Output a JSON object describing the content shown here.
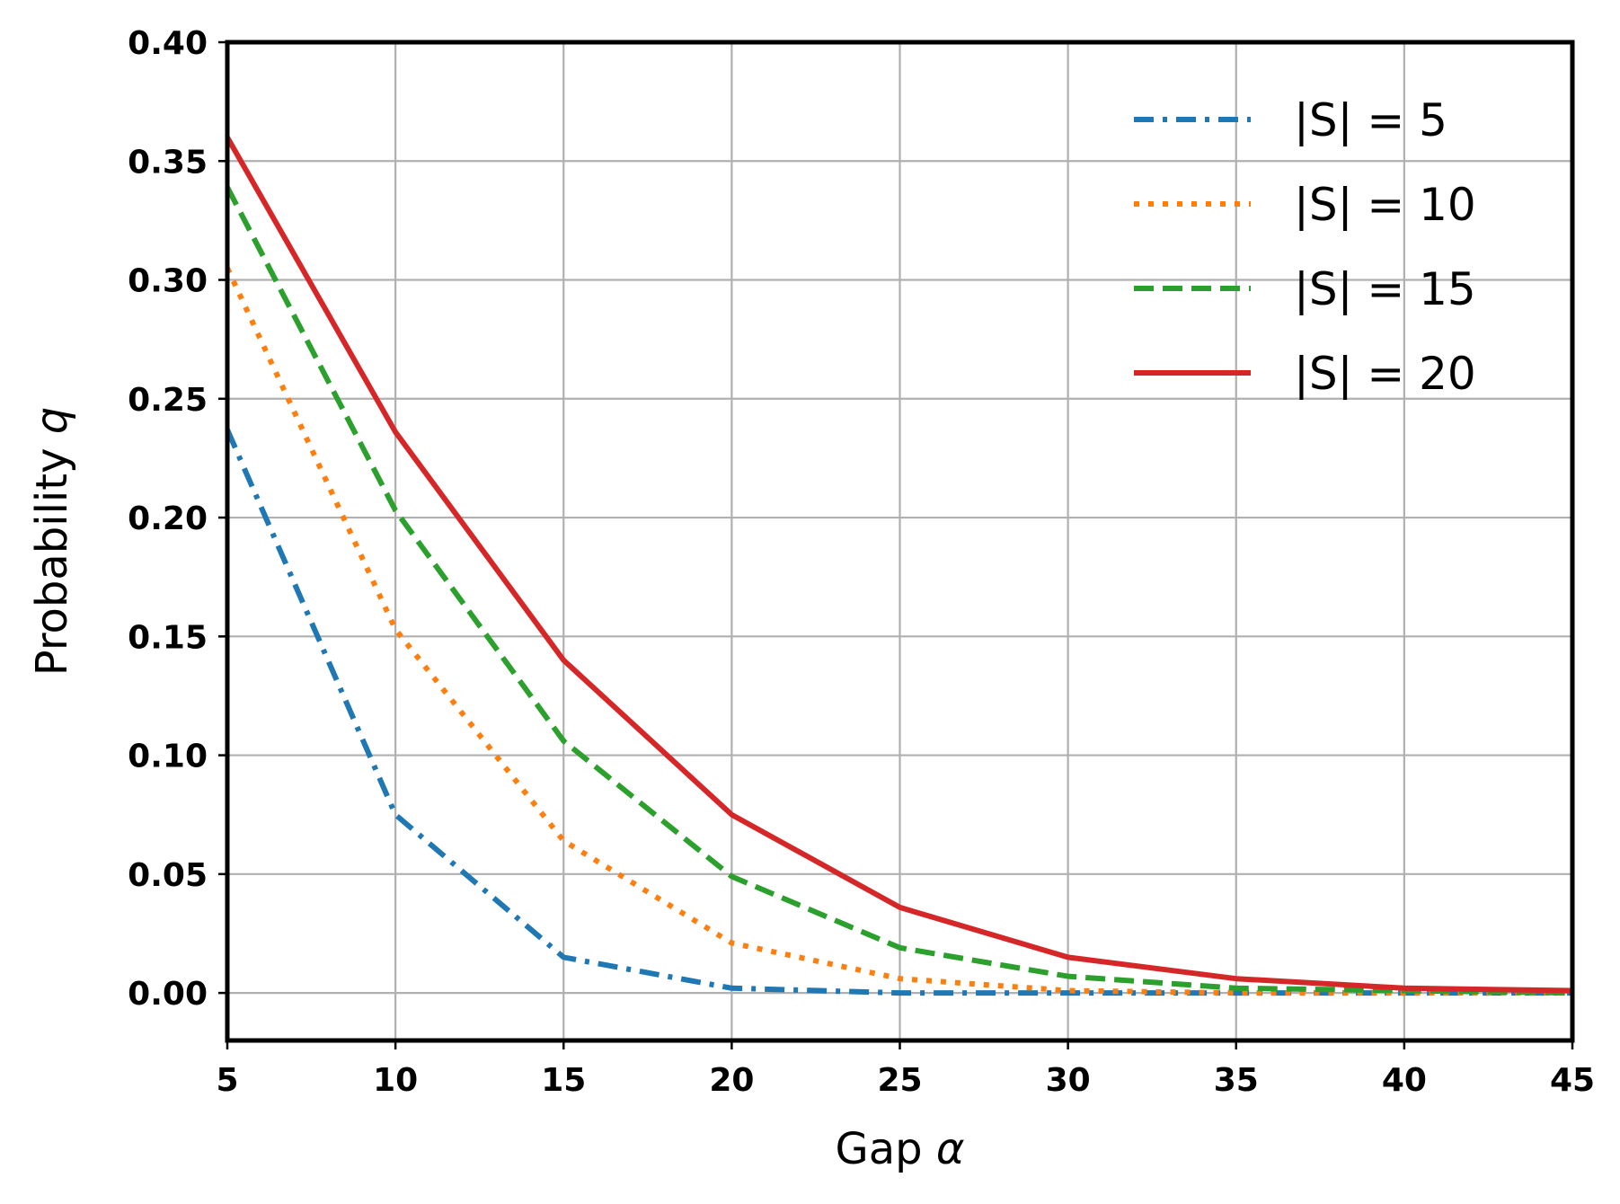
{
  "chart_data": {
    "type": "line",
    "xlabel": "Gap",
    "xlabel_symbol": "α",
    "ylabel": "Probability",
    "ylabel_symbol": "q",
    "xlim": [
      5,
      45
    ],
    "ylim": [
      -0.02,
      0.4
    ],
    "x_ticks": [
      "5",
      "10",
      "15",
      "20",
      "25",
      "30",
      "35",
      "40",
      "45"
    ],
    "y_ticks": [
      "0.00",
      "0.05",
      "0.10",
      "0.15",
      "0.20",
      "0.25",
      "0.30",
      "0.35",
      "0.40"
    ],
    "grid": true,
    "legend_position": "top-right",
    "x": [
      5,
      10,
      15,
      20,
      25,
      30,
      35,
      40,
      45
    ],
    "series": [
      {
        "name": "|S| = 5",
        "color": "#1f77b4",
        "style": "dashdot",
        "values": [
          0.237,
          0.075,
          0.015,
          0.002,
          0.0,
          0.0,
          0.0,
          0.0,
          0.0
        ]
      },
      {
        "name": "|S| = 10",
        "color": "#ff7f0e",
        "style": "dotted",
        "values": [
          0.305,
          0.153,
          0.064,
          0.021,
          0.006,
          0.001,
          0.0,
          0.0,
          0.0
        ]
      },
      {
        "name": "|S| = 15",
        "color": "#2ca02c",
        "style": "dashed",
        "values": [
          0.339,
          0.203,
          0.106,
          0.049,
          0.019,
          0.007,
          0.002,
          0.001,
          0.0
        ]
      },
      {
        "name": "|S| = 20",
        "color": "#d62728",
        "style": "solid",
        "values": [
          0.36,
          0.236,
          0.14,
          0.075,
          0.036,
          0.015,
          0.006,
          0.002,
          0.001
        ]
      }
    ]
  }
}
